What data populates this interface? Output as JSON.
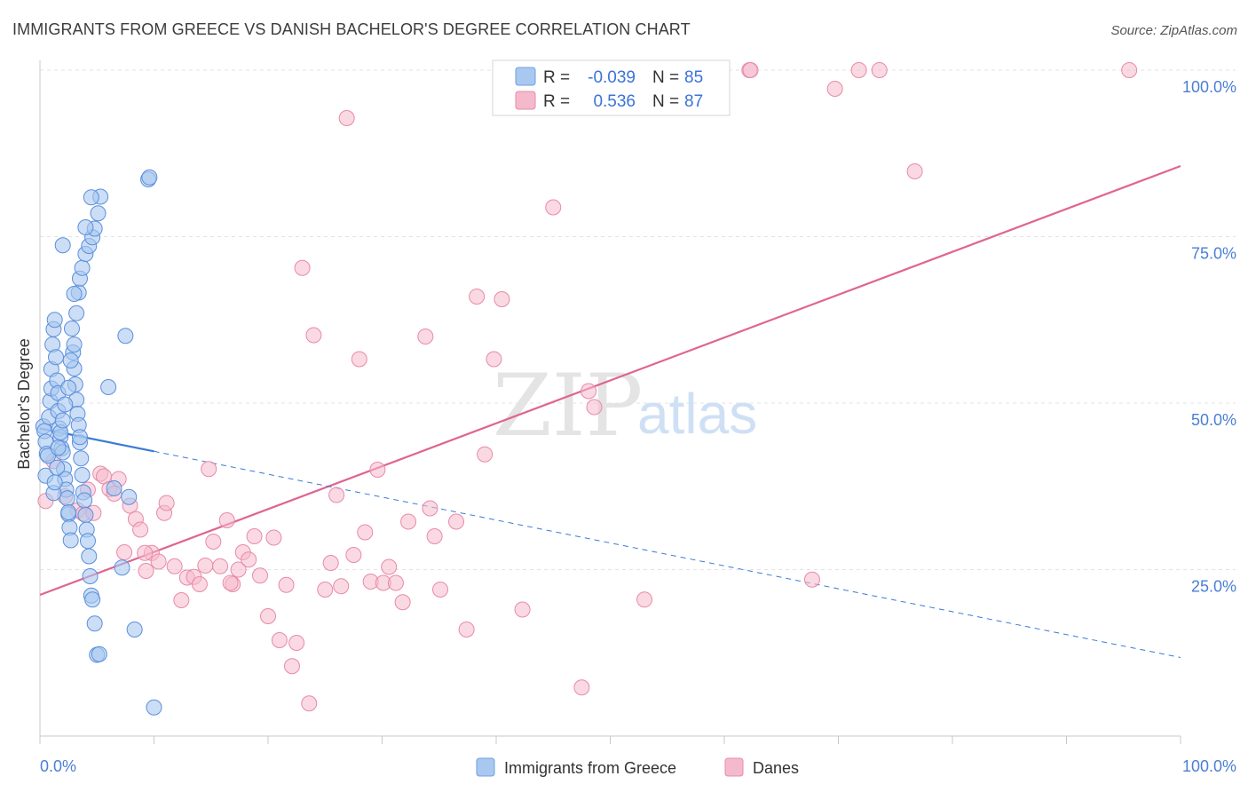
{
  "title": "IMMIGRANTS FROM GREECE VS DANISH BACHELOR'S DEGREE CORRELATION CHART",
  "source": "Source: ZipAtlas.com",
  "watermark": {
    "zip": "ZIP",
    "atlas": "atlas"
  },
  "colors": {
    "blue": "#3a7bd5",
    "blue_fill": "#a9c8f0",
    "pink": "#e0648f",
    "pink_fill": "#f5b9cc",
    "tick": "#4a7fd4"
  },
  "legend": {
    "rows": [
      {
        "r_label": "R = ",
        "r_value": "-0.039",
        "n_label": "N = ",
        "n_value": "85"
      },
      {
        "r_label": "R = ",
        "r_value": "0.536",
        "n_label": "N = ",
        "n_value": "87"
      }
    ]
  },
  "bottom_legend": [
    "Immigrants from Greece",
    "Danes"
  ],
  "chart_data": {
    "type": "scatter",
    "title": "IMMIGRANTS FROM GREECE VS DANISH BACHELOR'S DEGREE CORRELATION CHART",
    "xlabel": "",
    "ylabel": "Bachelor's Degree",
    "xlim": [
      0,
      100
    ],
    "ylim": [
      0,
      100
    ],
    "x_ticks": [
      "0.0%",
      "100.0%"
    ],
    "y_ticks": [
      "100.0%",
      "75.0%",
      "50.0%",
      "25.0%"
    ],
    "y_tick_values": [
      100,
      75,
      50,
      25
    ],
    "grid": true,
    "legend_position": "top-center",
    "series": [
      {
        "name": "Immigrants from Greece",
        "color": "#3a7bd5",
        "trend": {
          "x0": 0,
          "y0": 46.2,
          "x1": 100,
          "y1": 11.8,
          "solid_until": 10
        },
        "points": [
          [
            0.3,
            46.5
          ],
          [
            0.4,
            45.8
          ],
          [
            0.5,
            44.2
          ],
          [
            0.6,
            42.4
          ],
          [
            0.7,
            42.1
          ],
          [
            0.5,
            39.1
          ],
          [
            0.8,
            47.9
          ],
          [
            0.9,
            50.3
          ],
          [
            1.0,
            52.2
          ],
          [
            1.0,
            55.1
          ],
          [
            1.1,
            58.8
          ],
          [
            1.2,
            61.1
          ],
          [
            1.3,
            62.5
          ],
          [
            1.4,
            56.9
          ],
          [
            1.5,
            53.4
          ],
          [
            1.6,
            51.5
          ],
          [
            1.6,
            48.8
          ],
          [
            1.7,
            46.2
          ],
          [
            1.8,
            44.9
          ],
          [
            1.9,
            43.2
          ],
          [
            2.0,
            42.6
          ],
          [
            2.1,
            40.1
          ],
          [
            2.2,
            38.6
          ],
          [
            2.3,
            37.0
          ],
          [
            2.4,
            35.7
          ],
          [
            2.5,
            33.3
          ],
          [
            2.6,
            31.3
          ],
          [
            2.7,
            29.4
          ],
          [
            2.8,
            61.2
          ],
          [
            2.9,
            57.6
          ],
          [
            3.0,
            55.2
          ],
          [
            3.1,
            52.8
          ],
          [
            3.2,
            50.5
          ],
          [
            3.3,
            48.4
          ],
          [
            3.4,
            46.7
          ],
          [
            3.5,
            44.1
          ],
          [
            3.6,
            41.7
          ],
          [
            3.7,
            39.2
          ],
          [
            3.8,
            36.6
          ],
          [
            3.9,
            35.4
          ],
          [
            4.0,
            33.2
          ],
          [
            4.1,
            31.0
          ],
          [
            4.2,
            29.3
          ],
          [
            4.3,
            27.0
          ],
          [
            4.4,
            24.0
          ],
          [
            4.5,
            21.1
          ],
          [
            4.6,
            20.5
          ],
          [
            4.8,
            16.9
          ],
          [
            5.0,
            12.2
          ],
          [
            5.2,
            12.3
          ],
          [
            1.2,
            36.5
          ],
          [
            1.3,
            38.1
          ],
          [
            1.5,
            40.3
          ],
          [
            1.6,
            43.3
          ],
          [
            1.8,
            45.6
          ],
          [
            2.0,
            47.4
          ],
          [
            2.2,
            49.8
          ],
          [
            2.5,
            52.3
          ],
          [
            2.7,
            56.4
          ],
          [
            3.0,
            58.8
          ],
          [
            3.2,
            63.5
          ],
          [
            3.4,
            66.6
          ],
          [
            3.5,
            68.7
          ],
          [
            3.7,
            70.3
          ],
          [
            4.0,
            72.4
          ],
          [
            4.3,
            73.6
          ],
          [
            4.6,
            74.9
          ],
          [
            4.8,
            76.2
          ],
          [
            5.1,
            78.5
          ],
          [
            5.3,
            81.0
          ],
          [
            2.0,
            73.7
          ],
          [
            3.0,
            66.4
          ],
          [
            4.0,
            76.4
          ],
          [
            4.5,
            80.9
          ],
          [
            6.0,
            52.4
          ],
          [
            6.5,
            37.2
          ],
          [
            7.2,
            25.3
          ],
          [
            7.5,
            60.1
          ],
          [
            7.8,
            35.9
          ],
          [
            8.3,
            16.0
          ],
          [
            9.5,
            83.6
          ],
          [
            9.6,
            83.9
          ],
          [
            10.0,
            4.3
          ],
          [
            3.5,
            44.9
          ],
          [
            2.5,
            33.6
          ]
        ]
      },
      {
        "name": "Danes",
        "color": "#e0648f",
        "trend": {
          "x0": 0,
          "y0": 21.2,
          "x1": 100,
          "y1": 85.6
        },
        "points": [
          [
            0.5,
            35.3
          ],
          [
            1.2,
            41.3
          ],
          [
            2.2,
            36.0
          ],
          [
            3.3,
            33.9
          ],
          [
            3.8,
            33.4
          ],
          [
            4.2,
            37.0
          ],
          [
            4.7,
            33.5
          ],
          [
            5.3,
            39.4
          ],
          [
            5.6,
            39.0
          ],
          [
            6.1,
            37.1
          ],
          [
            6.5,
            36.4
          ],
          [
            6.9,
            38.6
          ],
          [
            7.4,
            27.6
          ],
          [
            7.9,
            34.6
          ],
          [
            8.4,
            32.6
          ],
          [
            8.8,
            31.0
          ],
          [
            9.3,
            24.8
          ],
          [
            9.8,
            27.5
          ],
          [
            10.4,
            26.2
          ],
          [
            10.9,
            33.5
          ],
          [
            11.1,
            35.0
          ],
          [
            11.8,
            25.5
          ],
          [
            12.4,
            20.4
          ],
          [
            12.9,
            23.8
          ],
          [
            13.5,
            23.9
          ],
          [
            14.0,
            22.8
          ],
          [
            14.5,
            25.6
          ],
          [
            14.8,
            40.1
          ],
          [
            15.2,
            29.2
          ],
          [
            15.8,
            25.5
          ],
          [
            16.4,
            32.4
          ],
          [
            16.9,
            22.8
          ],
          [
            17.4,
            25.0
          ],
          [
            17.8,
            27.6
          ],
          [
            18.3,
            26.5
          ],
          [
            18.8,
            30.0
          ],
          [
            19.3,
            24.1
          ],
          [
            20.0,
            18.0
          ],
          [
            20.5,
            29.8
          ],
          [
            21.0,
            14.4
          ],
          [
            21.6,
            22.7
          ],
          [
            22.1,
            10.5
          ],
          [
            22.5,
            14.0
          ],
          [
            23.0,
            70.3
          ],
          [
            23.6,
            4.9
          ],
          [
            24.0,
            60.2
          ],
          [
            25.0,
            22.0
          ],
          [
            25.5,
            26.0
          ],
          [
            26.0,
            36.2
          ],
          [
            26.4,
            22.5
          ],
          [
            26.9,
            92.8
          ],
          [
            27.5,
            27.2
          ],
          [
            28.0,
            56.6
          ],
          [
            28.5,
            30.6
          ],
          [
            29.0,
            23.2
          ],
          [
            29.6,
            40.0
          ],
          [
            30.1,
            23.0
          ],
          [
            30.6,
            25.4
          ],
          [
            31.2,
            23.0
          ],
          [
            31.8,
            20.1
          ],
          [
            32.3,
            32.2
          ],
          [
            33.8,
            60.0
          ],
          [
            34.2,
            34.2
          ],
          [
            34.6,
            30.0
          ],
          [
            35.1,
            22.0
          ],
          [
            36.5,
            32.2
          ],
          [
            37.4,
            16.0
          ],
          [
            38.3,
            66.0
          ],
          [
            39.0,
            42.3
          ],
          [
            39.8,
            56.6
          ],
          [
            40.5,
            65.6
          ],
          [
            42.3,
            19.0
          ],
          [
            45.0,
            79.4
          ],
          [
            47.5,
            7.3
          ],
          [
            48.1,
            51.8
          ],
          [
            48.6,
            49.4
          ],
          [
            53.0,
            20.5
          ],
          [
            62.2,
            100.0
          ],
          [
            62.3,
            100.0
          ],
          [
            67.7,
            23.5
          ],
          [
            69.7,
            97.2
          ],
          [
            71.8,
            100.0
          ],
          [
            73.6,
            100.0
          ],
          [
            76.7,
            84.8
          ],
          [
            95.5,
            100.0
          ],
          [
            16.7,
            23.0
          ],
          [
            9.2,
            27.5
          ]
        ]
      }
    ]
  }
}
